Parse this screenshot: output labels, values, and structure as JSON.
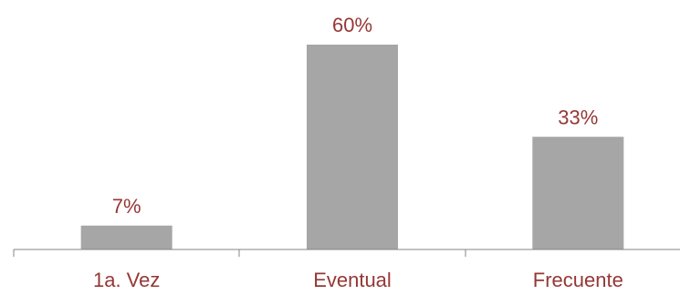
{
  "chart_data": {
    "type": "bar",
    "categories": [
      "1a. Vez",
      "Eventual",
      "Frecuente"
    ],
    "values": [
      7,
      60,
      33
    ],
    "data_labels": [
      "7%",
      "60%",
      "33%"
    ],
    "title": "",
    "xlabel": "",
    "ylabel": "",
    "ylim": [
      0,
      60
    ],
    "grid": false,
    "legend": "none",
    "colors": {
      "bar": "#a6a6a6",
      "label": "#953735",
      "axis": "#868686"
    }
  }
}
